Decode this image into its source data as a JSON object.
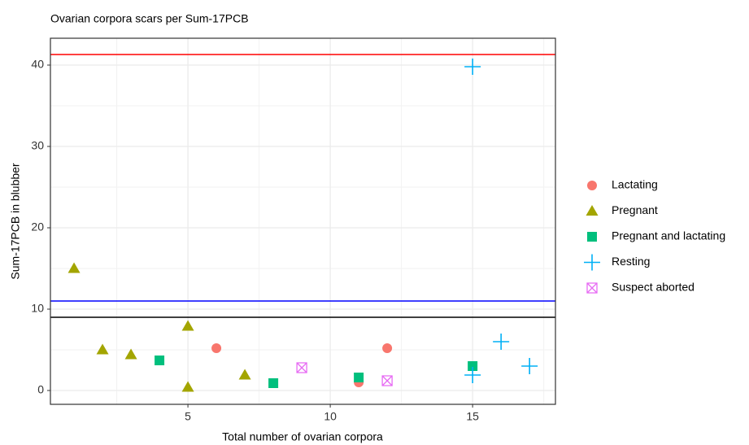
{
  "chart_data": {
    "type": "scatter",
    "title": "Ovarian corpora scars per Sum-17PCB",
    "x_label": "Total number of ovarian corpora",
    "y_label": "Sum-17PCB in blubber",
    "xlim": [
      0.17,
      17.91
    ],
    "ylim": [
      -1.7,
      43.3
    ],
    "xticks": [
      5,
      10,
      15
    ],
    "yticks": [
      0,
      10,
      20,
      30,
      40
    ],
    "minor_xticks": [
      2.5,
      7.5,
      12.5,
      17.5
    ],
    "minor_yticks": [
      5,
      15,
      25,
      35
    ],
    "grid": true,
    "legend": "right",
    "hlines": [
      {
        "value": 41.3,
        "color": "#ff0000"
      },
      {
        "value": 11,
        "color": "#0000ff"
      },
      {
        "value": 9,
        "color": "#000000"
      }
    ],
    "series": [
      {
        "name": "Lactating",
        "color": "#F8766D",
        "shape": "circle",
        "x": [
          6,
          11,
          12
        ],
        "y": [
          5.2,
          1.0,
          5.2
        ]
      },
      {
        "name": "Pregnant",
        "color": "#A3A500",
        "shape": "triangle",
        "x": [
          1,
          2,
          3,
          5,
          5,
          7
        ],
        "y": [
          15,
          5,
          4.4,
          7.9,
          0.4,
          1.9
        ]
      },
      {
        "name": "Pregnant and lactating",
        "color": "#00BF7D",
        "shape": "square",
        "x": [
          4,
          8,
          11,
          15
        ],
        "y": [
          3.7,
          0.9,
          1.6,
          3.0
        ]
      },
      {
        "name": "Resting",
        "color": "#00B0F6",
        "shape": "plus",
        "x": [
          15,
          15,
          16,
          17
        ],
        "y": [
          39.8,
          1.9,
          6.0,
          3.0
        ]
      },
      {
        "name": "Suspect aborted",
        "color": "#E76BF3",
        "shape": "boxx",
        "x": [
          9,
          12
        ],
        "y": [
          2.8,
          1.2
        ]
      }
    ]
  }
}
